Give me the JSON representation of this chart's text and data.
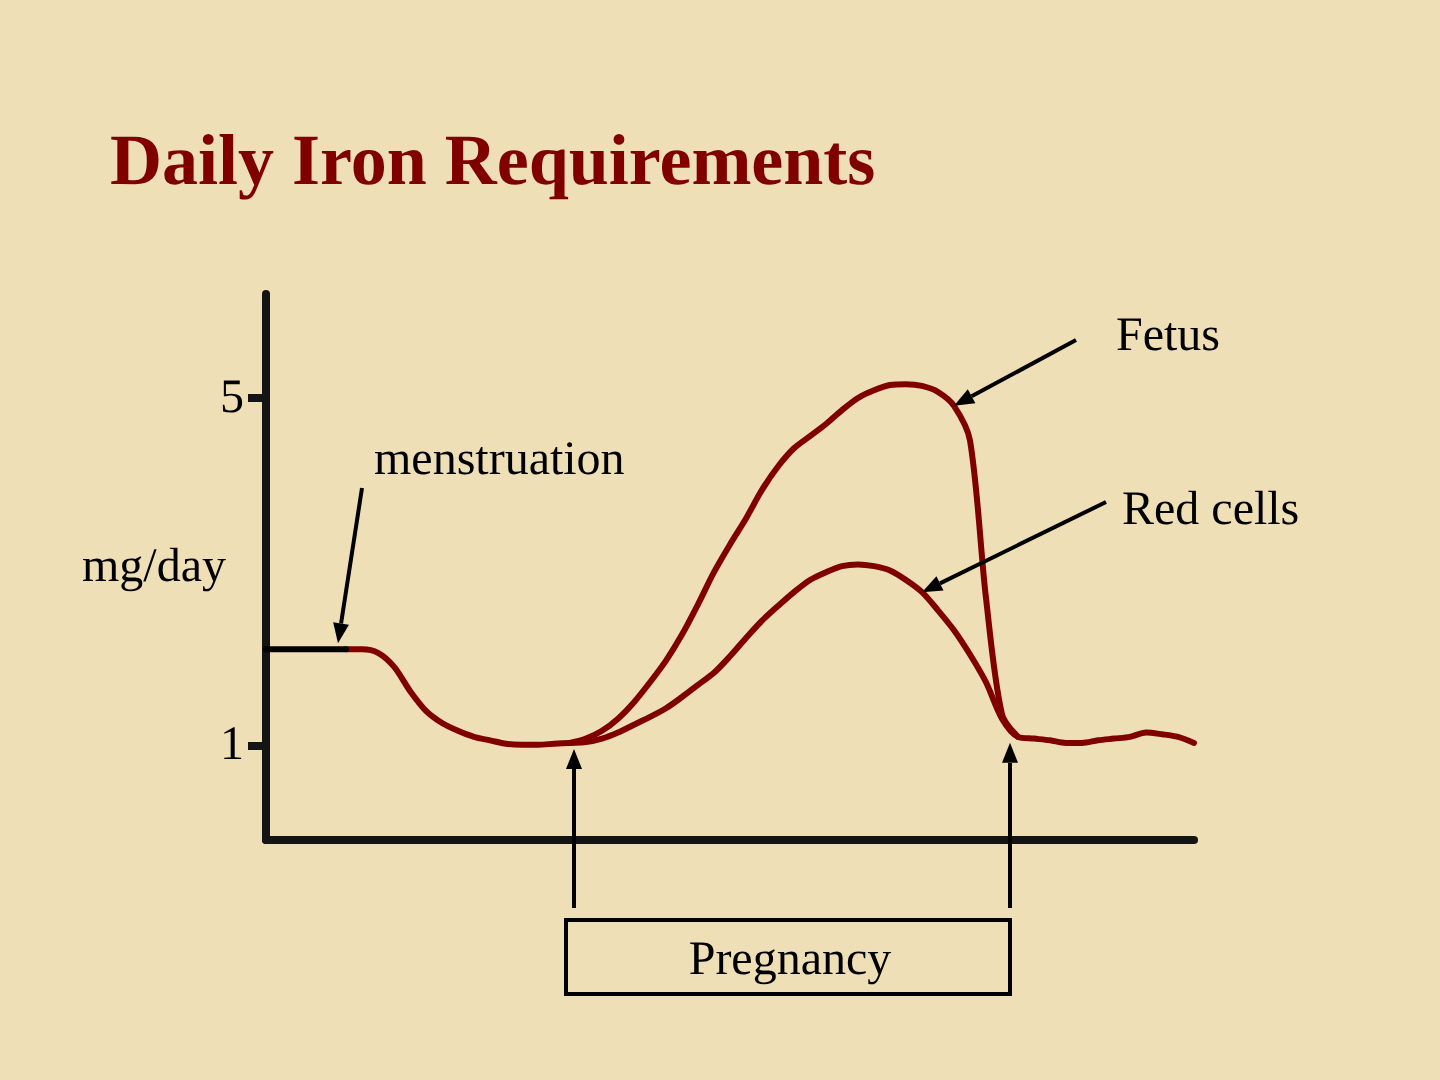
{
  "chart_data": {
    "type": "line",
    "title": "Daily Iron Requirements",
    "ylabel": "mg/day",
    "categories": [
      null,
      null,
      null,
      null,
      null,
      null,
      null,
      null,
      null,
      null,
      null,
      null,
      null,
      null,
      null,
      null,
      null,
      null,
      null,
      null,
      null,
      null,
      null,
      null,
      null,
      null,
      null,
      null,
      null,
      null,
      null,
      null,
      null,
      null,
      null,
      null,
      null,
      null,
      null,
      null,
      null,
      null,
      null,
      null,
      null,
      null,
      null,
      null,
      null,
      null,
      null,
      null,
      null,
      null,
      null,
      null,
      null,
      null,
      null
    ],
    "series": [
      {
        "name": "Fetus",
        "color": "#800000",
        "values": [
          null,
          null,
          null,
          null,
          null,
          null,
          null,
          null,
          null,
          null,
          null,
          null,
          null,
          null,
          null,
          null,
          null,
          null,
          null,
          1.02,
          1.07,
          1.16,
          1.3,
          1.49,
          1.72,
          1.97,
          2.27,
          2.62,
          2.99,
          3.31,
          3.61,
          3.94,
          4.21,
          4.42,
          4.56,
          4.7,
          4.86,
          5.0,
          5.09,
          5.15,
          5.16,
          5.14,
          5.07,
          4.91,
          4.51,
          2.69,
          1.35,
          1.09,
          null,
          null,
          null,
          null,
          null,
          null,
          null,
          null,
          null,
          null,
          null
        ]
      },
      {
        "name": "Red cells",
        "color": "#800000",
        "values": [
          null,
          null,
          null,
          null,
          null,
          2.1,
          2.1,
          2.06,
          1.9,
          1.62,
          1.39,
          1.25,
          1.16,
          1.09,
          1.05,
          1.01,
          1.0,
          1.0,
          1.01,
          1.02,
          1.03,
          1.07,
          1.14,
          1.23,
          1.32,
          1.42,
          1.55,
          1.69,
          1.83,
          2.02,
          2.23,
          2.43,
          2.6,
          2.76,
          2.9,
          2.99,
          3.06,
          3.08,
          3.06,
          3.01,
          2.9,
          2.76,
          2.55,
          2.32,
          2.04,
          1.72,
          1.3,
          1.09,
          1.07,
          1.05,
          1.02,
          1.02,
          1.05,
          1.07,
          1.09,
          1.14,
          1.12,
          1.09,
          1.02
        ]
      },
      {
        "color": "#000000",
        "values": [
          2.1,
          2.1,
          2.1,
          2.1,
          2.1,
          2.1,
          null,
          null,
          null,
          null,
          null,
          null,
          null,
          null,
          null,
          null,
          null,
          null,
          null,
          null,
          null,
          null,
          null,
          null,
          null,
          null,
          null,
          null,
          null,
          null,
          null,
          null,
          null,
          null,
          null,
          null,
          null,
          null,
          null,
          null,
          null,
          null,
          null,
          null,
          null,
          null,
          null,
          null,
          null,
          null,
          null,
          null,
          null,
          null,
          null,
          null,
          null,
          null,
          null
        ]
      }
    ],
    "ylim": [
      -0.1,
      6.2
    ],
    "yticks": [
      1,
      5
    ],
    "tick_labels": "y",
    "marker": "none",
    "line_style": "solid",
    "annotations": [
      "menstruation",
      "Pregnancy"
    ]
  }
}
